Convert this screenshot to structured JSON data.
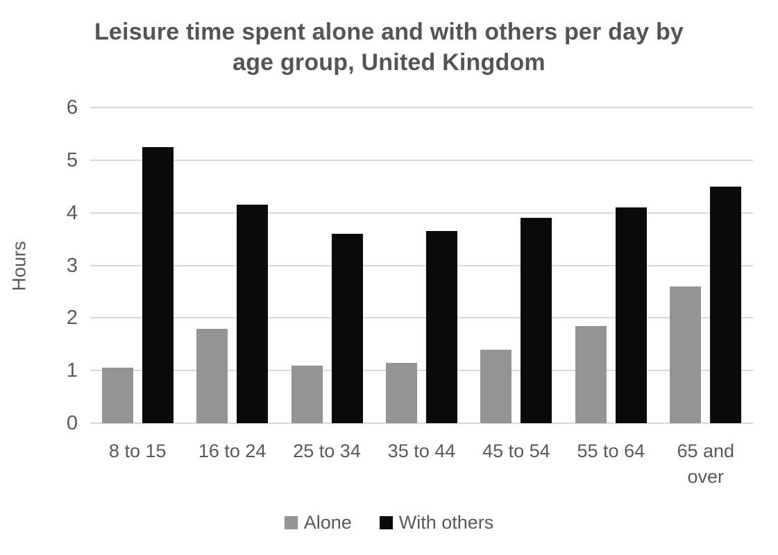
{
  "chart": {
    "title": "Leisure time spent alone and with others per day by age group, United Kingdom",
    "ylabel": "Hours"
  },
  "chart_data": {
    "type": "bar",
    "title": "Leisure time spent alone and with others per day by age group, United Kingdom",
    "xlabel": "",
    "ylabel": "Hours",
    "categories": [
      "8 to 15",
      "16 to 24",
      "25 to 34",
      "35 to 44",
      "45 to 54",
      "55 to 64",
      "65 and over"
    ],
    "series": [
      {
        "name": "Alone",
        "color": "#949494",
        "values": [
          1.05,
          1.8,
          1.1,
          1.15,
          1.4,
          1.85,
          2.6
        ]
      },
      {
        "name": "With others",
        "color": "#0a0a0a",
        "values": [
          5.25,
          4.15,
          3.6,
          3.65,
          3.9,
          4.1,
          4.5
        ]
      }
    ],
    "ylim": [
      0,
      6
    ],
    "yticks": [
      0,
      1,
      2,
      3,
      4,
      5,
      6
    ],
    "grid": true,
    "legend_position": "bottom",
    "colors": {
      "title_text": "#545454",
      "axis_text": "#595959",
      "gridline": "#d9d9d9",
      "background": "#ffffff"
    }
  }
}
